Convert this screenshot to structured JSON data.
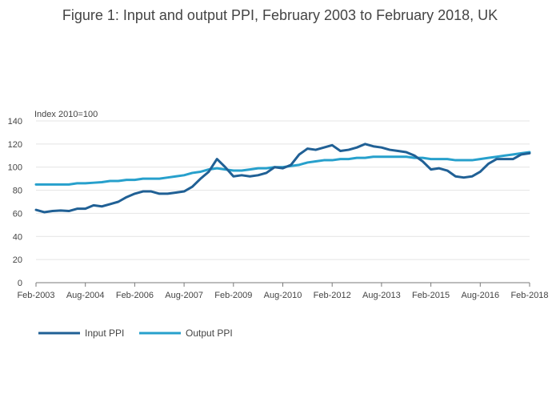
{
  "title": "Figure 1: Input and output PPI, February 2003 to February 2018, UK",
  "colors": {
    "input": "#206095",
    "output": "#27a0cc",
    "grid": "#e4e4e4",
    "axis": "#7a7a7a"
  },
  "chart_data": {
    "type": "line",
    "title": "Figure 1: Input and output PPI, February 2003 to February 2018, UK",
    "xlabel": "",
    "ylabel": "Index 2010=100",
    "ylim": [
      0,
      140
    ],
    "yticks": [
      "0",
      "20",
      "40",
      "60",
      "80",
      "100",
      "120",
      "140"
    ],
    "xticks": [
      "Feb-2003",
      "Aug-2004",
      "Feb-2006",
      "Aug-2007",
      "Feb-2009",
      "Aug-2010",
      "Feb-2012",
      "Aug-2013",
      "Feb-2015",
      "Aug-2016",
      "Feb-2018"
    ],
    "grid": true,
    "legend_position": "bottom-left",
    "x": [
      "Feb-2003",
      "May-2003",
      "Aug-2003",
      "Nov-2003",
      "Feb-2004",
      "May-2004",
      "Aug-2004",
      "Nov-2004",
      "Feb-2005",
      "May-2005",
      "Aug-2005",
      "Nov-2005",
      "Feb-2006",
      "May-2006",
      "Aug-2006",
      "Nov-2006",
      "Feb-2007",
      "May-2007",
      "Aug-2007",
      "Nov-2007",
      "Feb-2008",
      "May-2008",
      "Aug-2008",
      "Nov-2008",
      "Feb-2009",
      "May-2009",
      "Aug-2009",
      "Nov-2009",
      "Feb-2010",
      "May-2010",
      "Aug-2010",
      "Nov-2010",
      "Feb-2011",
      "May-2011",
      "Aug-2011",
      "Nov-2011",
      "Feb-2012",
      "May-2012",
      "Aug-2012",
      "Nov-2012",
      "Feb-2013",
      "May-2013",
      "Aug-2013",
      "Nov-2013",
      "Feb-2014",
      "May-2014",
      "Aug-2014",
      "Nov-2014",
      "Feb-2015",
      "May-2015",
      "Aug-2015",
      "Nov-2015",
      "Feb-2016",
      "May-2016",
      "Aug-2016",
      "Nov-2016",
      "Feb-2017",
      "May-2017",
      "Aug-2017",
      "Nov-2017",
      "Feb-2018"
    ],
    "series": [
      {
        "name": "Input PPI",
        "values": [
          63,
          61,
          62,
          62.5,
          62,
          64,
          64,
          67,
          66,
          68,
          70,
          74,
          77,
          79,
          79,
          77,
          77,
          78,
          79,
          83,
          90,
          96,
          107,
          100,
          92,
          93,
          92,
          93,
          95,
          100,
          99,
          102,
          111,
          116,
          115,
          117,
          119,
          114,
          115,
          117,
          120,
          118,
          117,
          115,
          114,
          113,
          110,
          105,
          98,
          99,
          97,
          92,
          91,
          92,
          96,
          103,
          107,
          107,
          107,
          111,
          112
        ]
      },
      {
        "name": "Output PPI",
        "values": [
          85,
          85,
          85,
          85,
          85,
          86,
          86,
          86.5,
          87,
          88,
          88,
          89,
          89,
          90,
          90,
          90,
          91,
          92,
          93,
          95,
          96,
          98,
          99,
          98,
          97,
          97,
          98,
          99,
          99,
          100,
          100,
          101,
          102,
          104,
          105,
          106,
          106,
          107,
          107,
          108,
          108,
          109,
          109,
          109,
          109,
          109,
          108,
          108,
          107,
          107,
          107,
          106,
          106,
          106,
          107,
          108,
          109,
          110,
          111,
          112,
          113
        ]
      }
    ]
  }
}
